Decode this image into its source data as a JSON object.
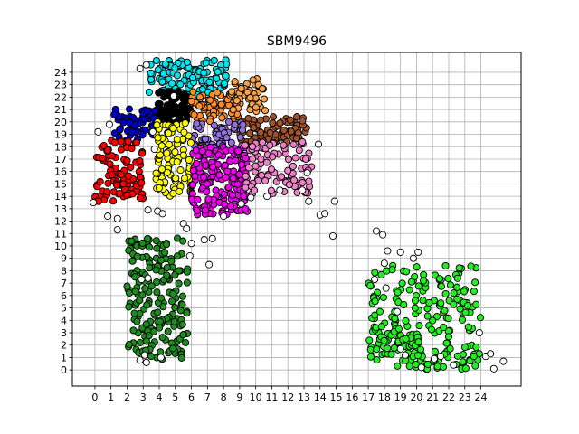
{
  "chart_data": {
    "type": "scatter",
    "title": "SBM9496",
    "xlabel": "",
    "ylabel": "",
    "xlim": [
      -1.4,
      26.5
    ],
    "ylim": [
      -1.3,
      25.6
    ],
    "x_ticks": [
      0,
      1,
      2,
      3,
      4,
      5,
      6,
      7,
      8,
      9,
      10,
      11,
      12,
      13,
      14,
      15,
      16,
      17,
      18,
      19,
      20,
      21,
      22,
      23,
      24
    ],
    "y_ticks": [
      0,
      1,
      2,
      3,
      4,
      5,
      6,
      7,
      8,
      9,
      10,
      11,
      12,
      13,
      14,
      15,
      16,
      17,
      18,
      19,
      20,
      21,
      22,
      23,
      24
    ],
    "grid": true,
    "legend": "none",
    "clusters": [
      {
        "color": "#00e5ee",
        "x_range": [
          3.3,
          8.2
        ],
        "y_range": [
          22.1,
          25.0
        ],
        "approx_points": 120
      },
      {
        "color": "#000000",
        "x_range": [
          3.8,
          6.0
        ],
        "y_range": [
          19.9,
          22.5
        ],
        "approx_points": 70
      },
      {
        "color": "#ff8c29",
        "x_range": [
          6.0,
          9.0
        ],
        "y_range": [
          20.0,
          22.5
        ],
        "approx_points": 70
      },
      {
        "color": "#f6a24a",
        "x_range": [
          8.3,
          10.6
        ],
        "y_range": [
          20.8,
          23.5
        ],
        "approx_points": 50
      },
      {
        "color": "#0000cc",
        "x_range": [
          1.2,
          3.9
        ],
        "y_range": [
          18.5,
          21.1
        ],
        "approx_points": 60
      },
      {
        "color": "#a0522d",
        "x_range": [
          9.0,
          13.2
        ],
        "y_range": [
          18.3,
          20.5
        ],
        "approx_points": 80
      },
      {
        "color": "#9370db",
        "x_range": [
          6.0,
          9.2
        ],
        "y_range": [
          17.8,
          20.0
        ],
        "approx_points": 60
      },
      {
        "color": "#ff0000",
        "x_range": [
          0.0,
          3.0
        ],
        "y_range": [
          13.6,
          18.5
        ],
        "approx_points": 100
      },
      {
        "color": "#ffff00",
        "x_range": [
          3.8,
          6.0
        ],
        "y_range": [
          14.0,
          20.0
        ],
        "approx_points": 110
      },
      {
        "color": "#ee00ee",
        "x_range": [
          6.0,
          9.5
        ],
        "y_range": [
          12.5,
          18.0
        ],
        "approx_points": 180
      },
      {
        "color": "#ee82c8",
        "x_range": [
          9.3,
          13.5
        ],
        "y_range": [
          14.2,
          18.4
        ],
        "approx_points": 90
      },
      {
        "color": "#1e8c1e",
        "x_range": [
          2.0,
          5.8
        ],
        "y_range": [
          0.8,
          10.7
        ],
        "approx_points": 190
      },
      {
        "color": "#22ee22",
        "x_range": [
          17.0,
          24.0
        ],
        "y_range": [
          0.0,
          8.5
        ],
        "approx_points": 230
      },
      {
        "color": "#ffffff",
        "x_range": [
          0.5,
          25.0
        ],
        "y_range": [
          0.0,
          24.0
        ],
        "approx_points": 60
      }
    ],
    "outliers": [
      [
        -0.1,
        13.5
      ],
      [
        0.8,
        12.4
      ],
      [
        1.4,
        12.2
      ],
      [
        1.4,
        11.3
      ],
      [
        3.3,
        12.9
      ],
      [
        3.9,
        12.8
      ],
      [
        4.2,
        12.6
      ],
      [
        5.5,
        11.8
      ],
      [
        5.7,
        11.4
      ],
      [
        6.8,
        10.5
      ],
      [
        7.3,
        10.6
      ],
      [
        7.1,
        8.5
      ],
      [
        6.0,
        10.2
      ],
      [
        5.9,
        9.2
      ],
      [
        2.9,
        7.3
      ],
      [
        3.3,
        7.4
      ],
      [
        3.1,
        1.2
      ],
      [
        2.8,
        0.8
      ],
      [
        3.2,
        0.6
      ],
      [
        4.1,
        1.0
      ],
      [
        8.0,
        12.4
      ],
      [
        9.1,
        13.4
      ],
      [
        9.7,
        13.9
      ],
      [
        10.7,
        14.0
      ],
      [
        11.5,
        14.5
      ],
      [
        12.9,
        14.5
      ],
      [
        13.3,
        13.6
      ],
      [
        14.0,
        12.5
      ],
      [
        14.3,
        12.6
      ],
      [
        14.9,
        13.6
      ],
      [
        14.8,
        10.8
      ],
      [
        13.2,
        15.9
      ],
      [
        13.9,
        18.2
      ],
      [
        0.2,
        19.2
      ],
      [
        0.9,
        19.8
      ],
      [
        2.8,
        24.3
      ],
      [
        3.2,
        24.6
      ],
      [
        3.6,
        19.2
      ],
      [
        4.9,
        22.1
      ],
      [
        3.7,
        17.8
      ],
      [
        17.5,
        11.2
      ],
      [
        17.9,
        10.9
      ],
      [
        18.0,
        8.6
      ],
      [
        18.2,
        9.6
      ],
      [
        19.0,
        9.5
      ],
      [
        19.8,
        9.0
      ],
      [
        20.1,
        9.5
      ],
      [
        17.4,
        7.3
      ],
      [
        18.1,
        6.6
      ],
      [
        18.8,
        4.7
      ],
      [
        19.0,
        1.7
      ],
      [
        19.3,
        1.2
      ],
      [
        20.3,
        0.2
      ],
      [
        21.1,
        0.9
      ],
      [
        21.5,
        1.1
      ],
      [
        22.3,
        0.4
      ],
      [
        24.3,
        1.1
      ],
      [
        24.6,
        1.3
      ],
      [
        24.8,
        0.1
      ],
      [
        25.4,
        0.7
      ],
      [
        23.9,
        3.0
      ]
    ]
  }
}
